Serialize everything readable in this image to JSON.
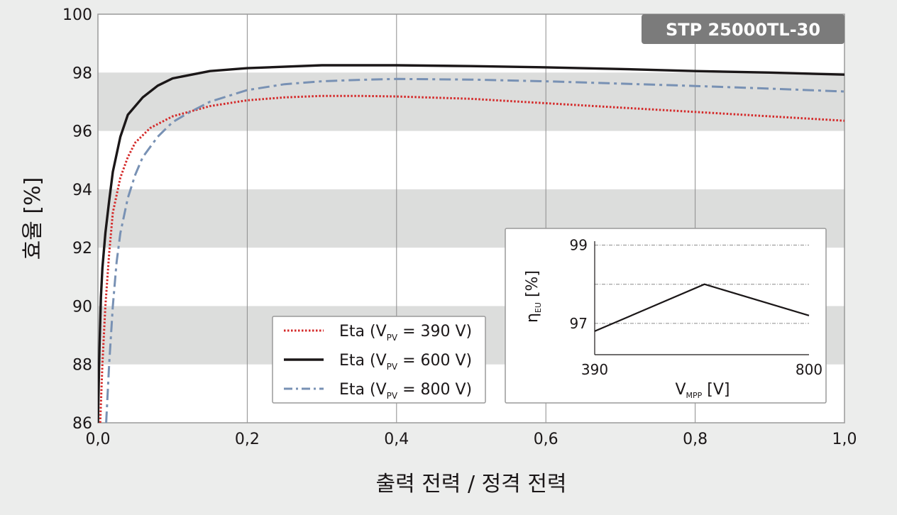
{
  "chart_data": [
    {
      "type": "line",
      "badge": "STP 25000TL-30",
      "xlabel": "출력 전력 / 정격 전력",
      "ylabel": "효율 [%]",
      "xlim": [
        0,
        1
      ],
      "ylim": [
        86,
        100
      ],
      "x_ticks": [
        "0,0",
        "0,2",
        "0,4",
        "0,6",
        "0,8",
        "1,0"
      ],
      "y_ticks": [
        "86",
        "88",
        "90",
        "92",
        "94",
        "96",
        "98",
        "100"
      ],
      "band_color": "#dcdddc",
      "grid": "vertical",
      "legend": {
        "position": "bottom-center",
        "entries": [
          {
            "prefix": "Eta (V",
            "sub": "PV",
            "suffix": " = 390 V)",
            "series": 0
          },
          {
            "prefix": "Eta (V",
            "sub": "PV",
            "suffix": " = 600 V)",
            "series": 1
          },
          {
            "prefix": "Eta (V",
            "sub": "PV",
            "suffix": " = 800 V)",
            "series": 2
          }
        ]
      },
      "series": [
        {
          "name": "Eta (VPV = 390 V)",
          "color": "#d42a2a",
          "style": "dotted",
          "points": [
            [
              0.003,
              86
            ],
            [
              0.006,
              88
            ],
            [
              0.01,
              90
            ],
            [
              0.015,
              91.8
            ],
            [
              0.02,
              93.2
            ],
            [
              0.03,
              94.4
            ],
            [
              0.04,
              95.1
            ],
            [
              0.05,
              95.6
            ],
            [
              0.07,
              96.1
            ],
            [
              0.1,
              96.5
            ],
            [
              0.15,
              96.85
            ],
            [
              0.2,
              97.05
            ],
            [
              0.25,
              97.15
            ],
            [
              0.3,
              97.2
            ],
            [
              0.35,
              97.2
            ],
            [
              0.4,
              97.18
            ],
            [
              0.5,
              97.1
            ],
            [
              0.6,
              96.95
            ],
            [
              0.7,
              96.8
            ],
            [
              0.8,
              96.65
            ],
            [
              0.9,
              96.5
            ],
            [
              1.0,
              96.35
            ]
          ]
        },
        {
          "name": "Eta (VPV = 600 V)",
          "color": "#1b1718",
          "style": "solid",
          "points": [
            [
              0.0,
              86
            ],
            [
              0.002,
              88.5
            ],
            [
              0.004,
              90.3
            ],
            [
              0.006,
              91.3
            ],
            [
              0.01,
              92.5
            ],
            [
              0.015,
              93.6
            ],
            [
              0.02,
              94.6
            ],
            [
              0.03,
              95.8
            ],
            [
              0.04,
              96.55
            ],
            [
              0.06,
              97.15
            ],
            [
              0.08,
              97.55
            ],
            [
              0.1,
              97.8
            ],
            [
              0.15,
              98.05
            ],
            [
              0.2,
              98.15
            ],
            [
              0.3,
              98.25
            ],
            [
              0.4,
              98.25
            ],
            [
              0.5,
              98.22
            ],
            [
              0.6,
              98.18
            ],
            [
              0.7,
              98.12
            ],
            [
              0.8,
              98.05
            ],
            [
              0.9,
              98.0
            ],
            [
              1.0,
              97.93
            ]
          ]
        },
        {
          "name": "Eta (VPV = 800 V)",
          "color": "#7891b4",
          "style": "dashdot",
          "points": [
            [
              0.011,
              86
            ],
            [
              0.015,
              88
            ],
            [
              0.02,
              90
            ],
            [
              0.025,
              91.5
            ],
            [
              0.03,
              92.5
            ],
            [
              0.04,
              93.7
            ],
            [
              0.05,
              94.5
            ],
            [
              0.06,
              95.1
            ],
            [
              0.08,
              95.8
            ],
            [
              0.1,
              96.3
            ],
            [
              0.12,
              96.6
            ],
            [
              0.15,
              97.0
            ],
            [
              0.2,
              97.4
            ],
            [
              0.25,
              97.6
            ],
            [
              0.3,
              97.7
            ],
            [
              0.35,
              97.75
            ],
            [
              0.4,
              97.78
            ],
            [
              0.5,
              97.76
            ],
            [
              0.6,
              97.7
            ],
            [
              0.7,
              97.62
            ],
            [
              0.8,
              97.54
            ],
            [
              0.9,
              97.45
            ],
            [
              1.0,
              97.35
            ]
          ]
        }
      ]
    },
    {
      "type": "line",
      "title": "",
      "ylabel": {
        "symbol": "η",
        "sub": "EU",
        "suffix": " [%]"
      },
      "xlabel": {
        "symbol": "V",
        "sub": "MPP",
        "suffix": " [V]"
      },
      "x_ticks": [
        "390",
        "800"
      ],
      "xlim": [
        390,
        800
      ],
      "y_ticks": [
        "97",
        "99"
      ],
      "ylim": [
        96.2,
        99.1
      ],
      "series": [
        {
          "color": "#1b1718",
          "x": [
            390,
            600,
            800
          ],
          "y": [
            96.8,
            98.0,
            97.2
          ]
        }
      ]
    }
  ]
}
